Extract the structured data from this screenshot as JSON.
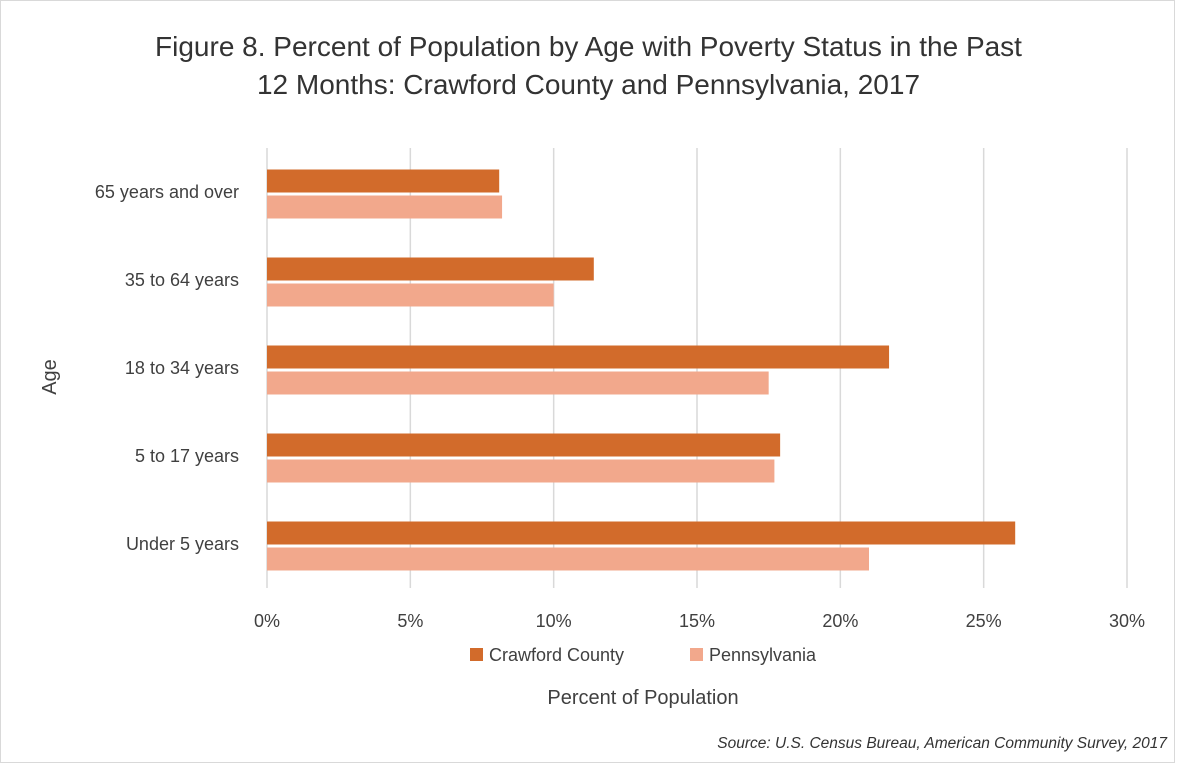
{
  "chart_data": {
    "type": "bar",
    "orientation": "horizontal",
    "title_line1": "Figure 8. Percent of Population by Age with Poverty Status in the Past",
    "title_line2": "12 Months: Crawford County and Pennsylvania,  2017",
    "categories": [
      "65 years and over",
      "35 to 64 years",
      "18 to 34 years",
      "5 to 17 years",
      "Under 5 years"
    ],
    "series": [
      {
        "name": "Crawford County",
        "color": "#D26B2B",
        "values": [
          8.1,
          11.4,
          21.7,
          17.9,
          26.1
        ]
      },
      {
        "name": "Pennsylvania",
        "color": "#F2A88C",
        "values": [
          8.2,
          10.0,
          17.5,
          17.7,
          21.0
        ]
      }
    ],
    "xlim": [
      0,
      30
    ],
    "xticks": [
      "0%",
      "5%",
      "10%",
      "15%",
      "20%",
      "25%",
      "30%"
    ],
    "xlabel": "Percent of Population",
    "ylabel": "Age",
    "grid": "vertical",
    "legend_position": "bottom",
    "source": "Source: U.S. Census Bureau, American Community Survey, 2017"
  }
}
